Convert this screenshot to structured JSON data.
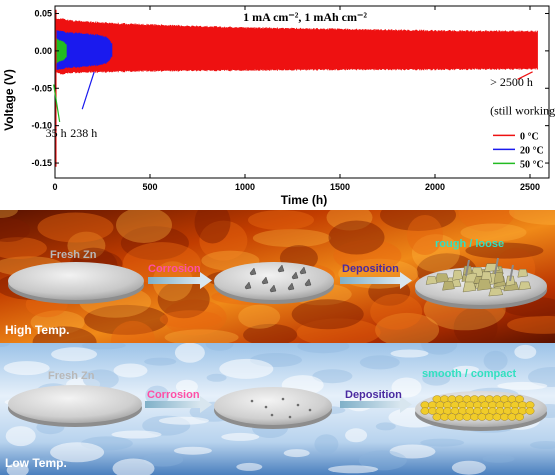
{
  "chart_data": {
    "type": "line",
    "title": "1 mA cm⁻², 1 mAh cm⁻²",
    "xlabel": "Time (h)",
    "ylabel": "Voltage (V)",
    "xlim": [
      0,
      2600
    ],
    "ylim": [
      -0.17,
      0.06
    ],
    "xticks": [
      0,
      500,
      1000,
      1500,
      2000,
      2500
    ],
    "yticks": [
      -0.15,
      -0.1,
      -0.05,
      0.0,
      0.05
    ],
    "xtick_labels": [
      "0",
      "500",
      "1000",
      "1500",
      "2000",
      "2500"
    ],
    "ytick_labels": [
      "-0.15",
      "-0.10",
      "-0.05",
      "0.00",
      "0.05"
    ],
    "legend_position": "bottom-right",
    "series": [
      {
        "name": "0 °C",
        "color": "#ee1111",
        "end_time_h": 2540,
        "x": [
          0,
          30,
          100,
          300,
          500,
          1000,
          1500,
          2000,
          2540
        ],
        "upper": [
          0.045,
          0.044,
          0.041,
          0.038,
          0.036,
          0.032,
          0.03,
          0.028,
          0.027
        ],
        "lower": [
          -0.03,
          -0.032,
          -0.03,
          -0.029,
          -0.028,
          -0.027,
          -0.026,
          -0.026,
          -0.025
        ]
      },
      {
        "name": "20 °C",
        "color": "#1a1aee",
        "end_time_h": 238,
        "x": [
          0,
          50,
          150,
          238,
          280,
          300
        ],
        "upper": [
          0.03,
          0.026,
          0.024,
          0.022,
          0.018,
          0.01
        ],
        "lower": [
          -0.028,
          -0.024,
          -0.022,
          -0.02,
          -0.016,
          -0.008
        ]
      },
      {
        "name": "50 °C",
        "color": "#22bb22",
        "end_time_h": 35,
        "x": [
          0,
          10,
          20,
          35,
          60
        ],
        "upper": [
          0.022,
          0.018,
          0.016,
          0.014,
          0.01
        ],
        "lower": [
          -0.022,
          -0.018,
          -0.016,
          -0.014,
          -0.01
        ]
      }
    ],
    "annotations": [
      {
        "text": "35 h",
        "x": 35,
        "y": -0.045
      },
      {
        "text": "238 h",
        "x": 238,
        "y": -0.025
      },
      {
        "text": "> 2500 h",
        "x": 2540,
        "y": 0.0
      },
      {
        "text": "(still working)",
        "x": 2540,
        "y": 0.0
      }
    ]
  },
  "schematic": {
    "high": {
      "label": "High Temp.",
      "stage1": "Fresh Zn",
      "step1": "Corrosion",
      "step2": "Deposition",
      "result": "rough / loose",
      "bg_colors": [
        "#3a0a00",
        "#c23d00",
        "#f07a10",
        "#ffb640"
      ]
    },
    "low": {
      "label": "Low Temp.",
      "stage1": "Fresh Zn",
      "step1": "Corrosion",
      "step2": "Deposition",
      "result": "smooth / compact",
      "bg_colors": [
        "#3a6fb0",
        "#8fb8e0",
        "#dceaf7",
        "#ffffff"
      ]
    }
  },
  "colors": {
    "corrosion_text": "#ff4fa6",
    "deposition_text": "#4a2aa0",
    "result_text": "#33e0c0",
    "disk": "#c9c9c9",
    "rough_particles": "#c9c38a",
    "smooth_particles": "#f0cc2a"
  }
}
